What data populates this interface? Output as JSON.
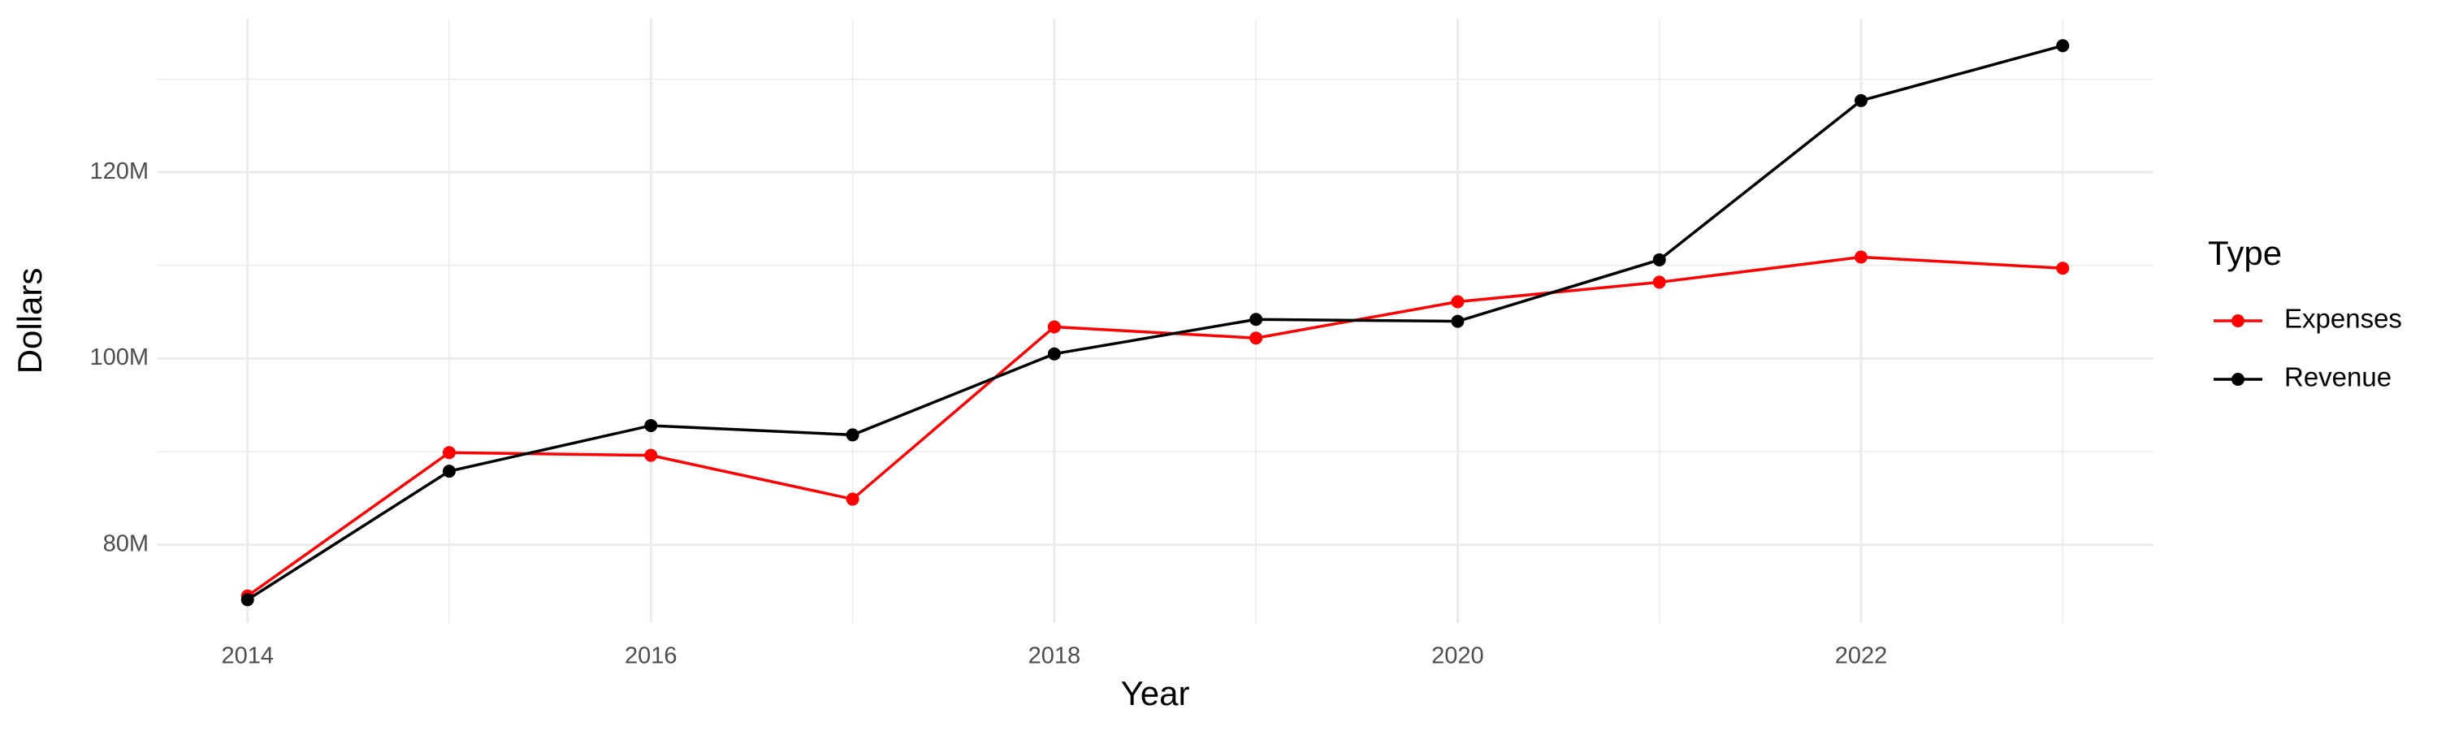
{
  "chart_data": {
    "type": "line",
    "x_label": "Year",
    "y_label": "Dollars",
    "legend_title": "Type",
    "x": [
      2014,
      2015,
      2016,
      2017,
      2018,
      2019,
      2020,
      2021,
      2022,
      2023
    ],
    "series": [
      {
        "name": "Expenses",
        "color": "#ff0000",
        "values": [
          74500000,
          89900000,
          89600000,
          84900000,
          103400000,
          102200000,
          106100000,
          108200000,
          110900000,
          109700000
        ]
      },
      {
        "name": "Revenue",
        "color": "#000000",
        "values": [
          74100000,
          87900000,
          92800000,
          91800000,
          100500000,
          104200000,
          104000000,
          110600000,
          127700000,
          133600000
        ]
      }
    ],
    "xlim": [
      2013.55,
      2023.45
    ],
    "xticks": [
      2014,
      2016,
      2018,
      2020,
      2022
    ],
    "ylim": [
      71600000,
      136500000
    ],
    "yticks": [
      {
        "value": 80000000,
        "label": "80M"
      },
      {
        "value": 100000000,
        "label": "100M"
      },
      {
        "value": 120000000,
        "label": "120M"
      }
    ],
    "grid": true,
    "minor_grid": true,
    "legend_position": "right"
  }
}
